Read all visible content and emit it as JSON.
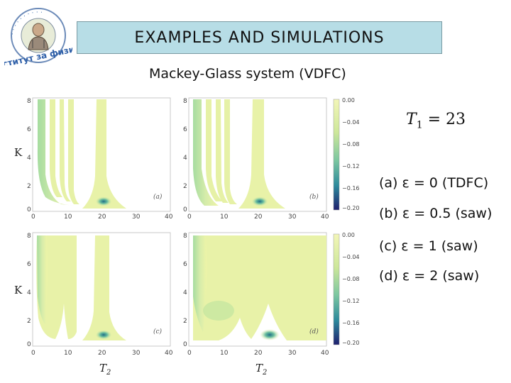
{
  "header": {
    "title": "EXAMPLES AND SIMULATIONS",
    "subtitle": "Mackey-Glass system (VDFC)"
  },
  "logo": {
    "text": "Институт за физику"
  },
  "delay_label": {
    "symbol": "T",
    "sub": "1",
    "rest": " = 23"
  },
  "cases": [
    "(a) ε = 0 (TDFC)",
    "(b) ε = 0.5 (saw)",
    "(c) ε = 1 (saw)",
    "(d) ε = 2 (saw)"
  ],
  "figure": {
    "ylabel": "K",
    "xlabel": "T",
    "xlabel_sub": "2",
    "x_ticks": [
      "0",
      "10",
      "20",
      "30",
      "40"
    ],
    "y_ticks": [
      "0",
      "2",
      "4",
      "6",
      "8"
    ],
    "colorbar_ticks": [
      "0.00",
      "−0.04",
      "−0.08",
      "−0.12",
      "−0.16",
      "−0.20"
    ],
    "panel_tags": [
      "(a)",
      "(b)",
      "(c)",
      "(d)"
    ]
  },
  "colors": {
    "title_bg": "#b7dde6",
    "map_pale": "#eef4a8",
    "map_mid": "#9fd49a",
    "map_deep": "#1f6e86",
    "colorbar_low": "#1f1f6e"
  }
}
